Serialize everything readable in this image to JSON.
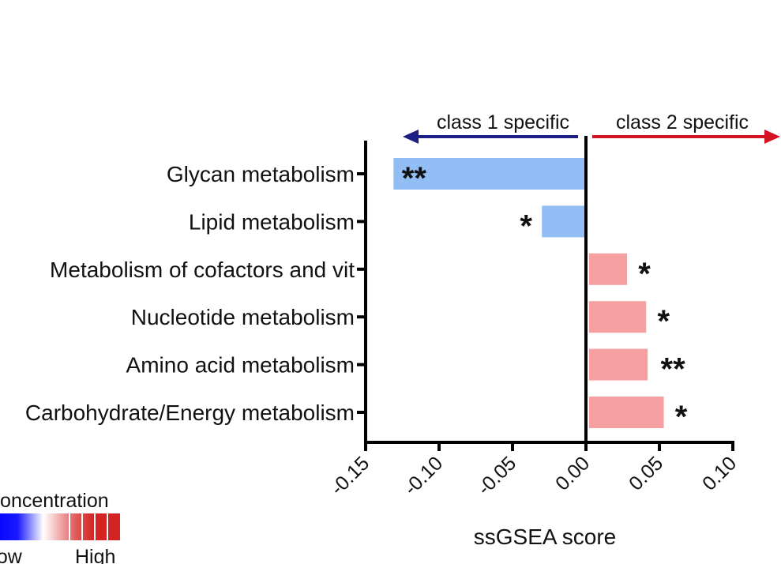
{
  "chart_data": {
    "type": "bar",
    "orientation": "horizontal",
    "xlabel": "ssGSEA score",
    "xlim": [
      -0.15,
      0.1
    ],
    "xticks": [
      -0.15,
      -0.1,
      -0.05,
      0.0,
      0.05,
      0.1
    ],
    "xtick_labels": [
      "-0.15",
      "-0.10",
      "-0.05",
      "0.00",
      "0.05",
      "0.10"
    ],
    "categories": [
      "Glycan metabolism",
      "Lipid metabolism",
      "Metabolism of cofactors and vit",
      "Nucleotide metabolism",
      "Amino acid metabolism",
      "Carbohydrate/Energy metabolism"
    ],
    "values": [
      -0.131,
      -0.03,
      0.028,
      0.041,
      0.042,
      0.053
    ],
    "significance": [
      "**",
      "*",
      "*",
      "*",
      "**",
      "*"
    ],
    "class_labels": {
      "negative": "class 1 specific",
      "positive": "class 2 specific"
    },
    "colors": {
      "negative_bar": "#92BEF5",
      "positive_bar": "#F6A0A2",
      "negative_arrow": "#1C1F84",
      "positive_arrow": "#D51423",
      "axis": "#000000"
    },
    "legend": {
      "title": "Concentration",
      "low_label": "Low",
      "high_label": "High",
      "colors": [
        "#0000FF",
        "#FFFFFF",
        "#D22222"
      ]
    }
  }
}
